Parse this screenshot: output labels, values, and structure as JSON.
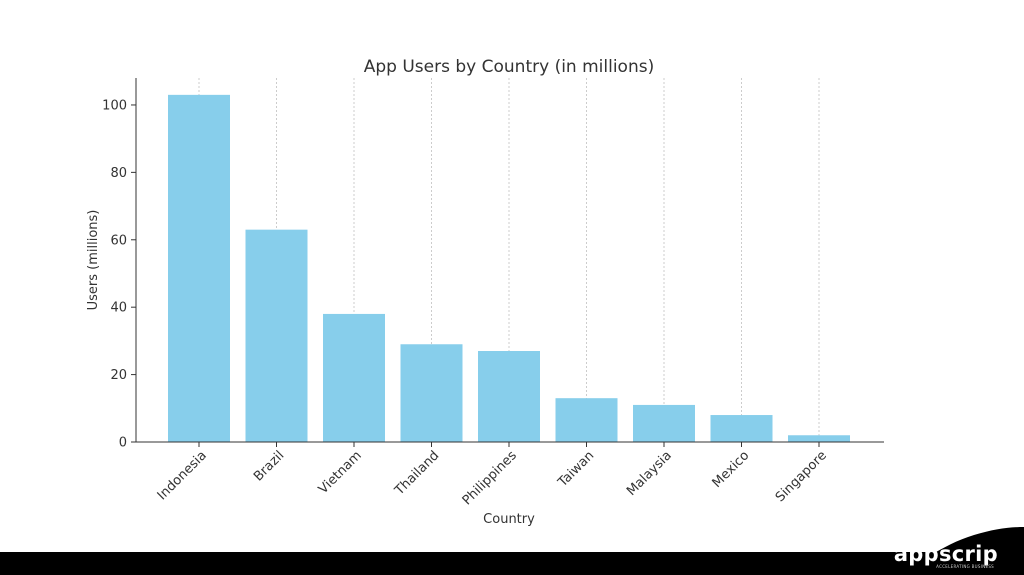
{
  "chart_data": {
    "type": "bar",
    "title": "App Users by Country (in millions)",
    "xlabel": "Country",
    "ylabel": "Users (millions)",
    "categories": [
      "Indonesia",
      "Brazil",
      "Vietnam",
      "Thailand",
      "Philippines",
      "Taiwan",
      "Malaysia",
      "Mexico",
      "Singapore"
    ],
    "values": [
      103,
      63,
      38,
      29,
      27,
      13,
      11,
      8,
      2
    ],
    "ylim": [
      0,
      108
    ],
    "yticks": [
      0,
      20,
      40,
      60,
      80,
      100
    ],
    "grid": "x-dotted",
    "bar_color": "#87ceeb"
  },
  "brand": {
    "name": "appscrip",
    "tagline": "ACCELERATING BUSINESS"
  },
  "colors": {
    "footer": "#000000",
    "axis": "#333333",
    "grid": "#cccccc"
  }
}
